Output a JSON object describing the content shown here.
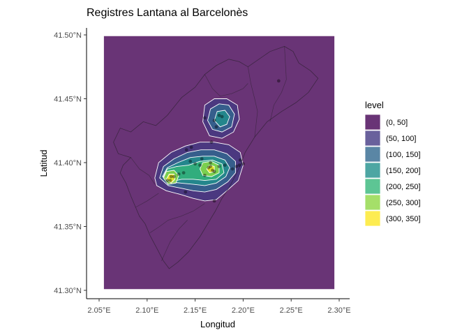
{
  "chart_data": {
    "type": "heatmap",
    "subtype": "filled-density-contour-map",
    "title": "Registres Lantana al Barcelonès",
    "xlabel": "Longitud",
    "ylabel": "Latitud",
    "xlim": [
      2.05,
      2.3
    ],
    "ylim": [
      41.3,
      41.5
    ],
    "x_ticks": [
      2.05,
      2.1,
      2.15,
      2.2,
      2.25,
      2.3
    ],
    "x_tick_labels": [
      "2.05°E",
      "2.10°E",
      "2.15°E",
      "2.20°E",
      "2.25°E",
      "2.30°E"
    ],
    "y_ticks": [
      41.3,
      41.35,
      41.4,
      41.45,
      41.5
    ],
    "y_tick_labels": [
      "41.30°N",
      "41.35°N",
      "41.40°N",
      "41.45°N",
      "41.50°N"
    ],
    "grid": false,
    "legend": {
      "title": "level",
      "placement": "right",
      "entries": [
        {
          "label": "(0, 50]",
          "color": "#440154"
        },
        {
          "label": "(50, 100]",
          "color": "#443A83"
        },
        {
          "label": "(100, 150]",
          "color": "#31688E"
        },
        {
          "label": "(150, 200]",
          "color": "#21908C"
        },
        {
          "label": "(200, 250]",
          "color": "#35B779"
        },
        {
          "label": "(250, 300]",
          "color": "#8FD744"
        },
        {
          "label": "(300, 350]",
          "color": "#FDE725"
        }
      ]
    },
    "fill_opacity": 0.8,
    "contour_line_color": "#ffffff",
    "levels": [
      {
        "level": 1,
        "polygons": [
          [
            [
              2.055,
              41.301
            ],
            [
              2.295,
              41.301
            ],
            [
              2.295,
              41.499
            ],
            [
              2.055,
              41.499
            ]
          ]
        ]
      },
      {
        "level": 2,
        "polygons": [
          [
            [
              2.108,
              41.388
            ],
            [
              2.112,
              41.4
            ],
            [
              2.125,
              41.408
            ],
            [
              2.14,
              41.413
            ],
            [
              2.155,
              41.416
            ],
            [
              2.17,
              41.416
            ],
            [
              2.185,
              41.414
            ],
            [
              2.197,
              41.408
            ],
            [
              2.2,
              41.398
            ],
            [
              2.195,
              41.386
            ],
            [
              2.183,
              41.378
            ],
            [
              2.172,
              41.371
            ],
            [
              2.16,
              41.37
            ],
            [
              2.148,
              41.372
            ],
            [
              2.135,
              41.375
            ],
            [
              2.12,
              41.378
            ],
            [
              2.11,
              41.382
            ]
          ],
          [
            [
              2.158,
              41.432
            ],
            [
              2.16,
              41.445
            ],
            [
              2.17,
              41.45
            ],
            [
              2.183,
              41.45
            ],
            [
              2.194,
              41.445
            ],
            [
              2.196,
              41.434
            ],
            [
              2.19,
              41.424
            ],
            [
              2.178,
              41.419
            ],
            [
              2.165,
              41.421
            ]
          ]
        ]
      },
      {
        "level": 3,
        "polygons": [
          [
            [
              2.113,
              41.388
            ],
            [
              2.117,
              41.397
            ],
            [
              2.128,
              41.403
            ],
            [
              2.142,
              41.408
            ],
            [
              2.156,
              41.41
            ],
            [
              2.17,
              41.41
            ],
            [
              2.183,
              41.407
            ],
            [
              2.192,
              41.401
            ],
            [
              2.192,
              41.392
            ],
            [
              2.184,
              41.385
            ],
            [
              2.172,
              41.379
            ],
            [
              2.16,
              41.377
            ],
            [
              2.148,
              41.378
            ],
            [
              2.135,
              41.38
            ],
            [
              2.122,
              41.382
            ]
          ],
          [
            [
              2.163,
              41.433
            ],
            [
              2.166,
              41.442
            ],
            [
              2.175,
              41.446
            ],
            [
              2.185,
              41.445
            ],
            [
              2.191,
              41.438
            ],
            [
              2.188,
              41.428
            ],
            [
              2.178,
              41.424
            ],
            [
              2.168,
              41.426
            ]
          ]
        ]
      },
      {
        "level": 4,
        "polygons": [
          [
            [
              2.116,
              41.389
            ],
            [
              2.121,
              41.396
            ],
            [
              2.132,
              41.4
            ],
            [
              2.145,
              41.404
            ],
            [
              2.158,
              41.405
            ],
            [
              2.17,
              41.405
            ],
            [
              2.181,
              41.402
            ],
            [
              2.186,
              41.396
            ],
            [
              2.182,
              41.389
            ],
            [
              2.172,
              41.384
            ],
            [
              2.16,
              41.382
            ],
            [
              2.148,
              41.383
            ],
            [
              2.135,
              41.384
            ],
            [
              2.123,
              41.385
            ]
          ],
          [
            [
              2.17,
              41.433
            ],
            [
              2.173,
              41.44
            ],
            [
              2.181,
              41.441
            ],
            [
              2.186,
              41.436
            ],
            [
              2.183,
              41.43
            ],
            [
              2.176,
              41.428
            ]
          ]
        ]
      },
      {
        "level": 5,
        "polygons": [
          [
            [
              2.117,
              41.389
            ],
            [
              2.121,
              41.395
            ],
            [
              2.131,
              41.397
            ],
            [
              2.143,
              41.398
            ],
            [
              2.155,
              41.401
            ],
            [
              2.168,
              41.402
            ],
            [
              2.178,
              41.399
            ],
            [
              2.18,
              41.392
            ],
            [
              2.172,
              41.387
            ],
            [
              2.16,
              41.386
            ],
            [
              2.148,
              41.387
            ],
            [
              2.136,
              41.387
            ],
            [
              2.125,
              41.385
            ]
          ]
        ]
      },
      {
        "level": 6,
        "polygons": [
          [
            [
              2.117,
              41.388
            ],
            [
              2.12,
              41.393
            ],
            [
              2.128,
              41.394
            ],
            [
              2.133,
              41.39
            ],
            [
              2.13,
              41.384
            ],
            [
              2.122,
              41.383
            ]
          ],
          [
            [
              2.155,
              41.395
            ],
            [
              2.158,
              41.4
            ],
            [
              2.167,
              41.401
            ],
            [
              2.175,
              41.398
            ],
            [
              2.175,
              41.392
            ],
            [
              2.167,
              41.389
            ],
            [
              2.158,
              41.39
            ]
          ]
        ]
      },
      {
        "level": 7,
        "polygons": [
          [
            [
              2.12,
              41.387
            ],
            [
              2.123,
              41.391
            ],
            [
              2.128,
              41.391
            ],
            [
              2.129,
              41.387
            ],
            [
              2.125,
              41.384
            ]
          ],
          [
            [
              2.162,
              41.395
            ],
            [
              2.165,
              41.398
            ],
            [
              2.17,
              41.397
            ],
            [
              2.17,
              41.393
            ],
            [
              2.165,
              41.392
            ]
          ]
        ]
      }
    ],
    "points": [
      [
        2.124,
        41.386
      ],
      [
        2.121,
        41.386
      ],
      [
        2.125,
        41.389
      ],
      [
        2.128,
        41.389
      ],
      [
        2.133,
        41.391
      ],
      [
        2.141,
        41.41
      ],
      [
        2.146,
        41.412
      ],
      [
        2.138,
        41.392
      ],
      [
        2.14,
        41.377
      ],
      [
        2.145,
        41.401
      ],
      [
        2.15,
        41.399
      ],
      [
        2.155,
        41.398
      ],
      [
        2.157,
        41.403
      ],
      [
        2.16,
        41.39
      ],
      [
        2.164,
        41.396
      ],
      [
        2.166,
        41.397
      ],
      [
        2.168,
        41.394
      ],
      [
        2.17,
        41.393
      ],
      [
        2.166,
        41.4
      ],
      [
        2.175,
        41.397
      ],
      [
        2.181,
        41.398
      ],
      [
        2.189,
        41.395
      ],
      [
        2.193,
        41.397
      ],
      [
        2.196,
        41.398
      ],
      [
        2.2,
        41.399
      ],
      [
        2.197,
        41.402
      ],
      [
        2.172,
        41.428
      ],
      [
        2.175,
        41.437
      ],
      [
        2.178,
        41.436
      ],
      [
        2.17,
        41.433
      ],
      [
        2.16,
        41.435
      ],
      [
        2.167,
        41.416
      ],
      [
        2.17,
        41.37
      ],
      [
        2.237,
        41.464
      ]
    ],
    "basemap": {
      "outline": [
        [
          2.205,
          41.475
        ],
        [
          2.228,
          41.487
        ],
        [
          2.243,
          41.491
        ],
        [
          2.252,
          41.487
        ],
        [
          2.258,
          41.478
        ],
        [
          2.27,
          41.472
        ],
        [
          2.278,
          41.466
        ],
        [
          2.268,
          41.455
        ],
        [
          2.255,
          41.447
        ],
        [
          2.24,
          41.44
        ],
        [
          2.225,
          41.432
        ],
        [
          2.212,
          41.42
        ],
        [
          2.202,
          41.408
        ],
        [
          2.197,
          41.398
        ],
        [
          2.192,
          41.39
        ],
        [
          2.185,
          41.38
        ],
        [
          2.178,
          41.372
        ],
        [
          2.171,
          41.362
        ],
        [
          2.163,
          41.352
        ],
        [
          2.155,
          41.342
        ],
        [
          2.143,
          41.33
        ],
        [
          2.132,
          41.322
        ],
        [
          2.123,
          41.317
        ],
        [
          2.117,
          41.323
        ],
        [
          2.11,
          41.333
        ],
        [
          2.103,
          41.343
        ],
        [
          2.098,
          41.352
        ],
        [
          2.092,
          41.358
        ],
        [
          2.088,
          41.365
        ],
        [
          2.083,
          41.374
        ],
        [
          2.078,
          41.384
        ],
        [
          2.072,
          41.392
        ],
        [
          2.075,
          41.398
        ],
        [
          2.083,
          41.404
        ],
        [
          2.07,
          41.407
        ],
        [
          2.065,
          41.416
        ],
        [
          2.072,
          41.427
        ],
        [
          2.083,
          41.424
        ],
        [
          2.096,
          41.432
        ],
        [
          2.109,
          41.429
        ],
        [
          2.121,
          41.437
        ],
        [
          2.136,
          41.451
        ],
        [
          2.15,
          41.459
        ],
        [
          2.16,
          41.469
        ],
        [
          2.172,
          41.476
        ],
        [
          2.185,
          41.481
        ],
        [
          2.196,
          41.479
        ]
      ],
      "borders": [
        [
          [
            2.103,
            41.345
          ],
          [
            2.113,
            41.35
          ],
          [
            2.122,
            41.355
          ],
          [
            2.135,
            41.358
          ],
          [
            2.148,
            41.362
          ],
          [
            2.16,
            41.368
          ]
        ],
        [
          [
            2.115,
            41.323
          ],
          [
            2.124,
            41.338
          ],
          [
            2.133,
            41.348
          ],
          [
            2.142,
            41.355
          ]
        ],
        [
          [
            2.088,
            41.365
          ],
          [
            2.1,
            41.37
          ],
          [
            2.112,
            41.376
          ]
        ],
        [
          [
            2.205,
            41.475
          ],
          [
            2.208,
            41.462
          ],
          [
            2.212,
            41.45
          ],
          [
            2.215,
            41.44
          ],
          [
            2.212,
            41.42
          ]
        ],
        [
          [
            2.228,
            41.432
          ],
          [
            2.232,
            41.445
          ],
          [
            2.24,
            41.455
          ],
          [
            2.245,
            41.465
          ],
          [
            2.243,
            41.491
          ]
        ],
        [
          [
            2.16,
            41.469
          ],
          [
            2.168,
            41.458
          ],
          [
            2.176,
            41.452
          ],
          [
            2.188,
            41.454
          ],
          [
            2.2,
            41.458
          ],
          [
            2.205,
            41.462
          ]
        ],
        [
          [
            2.083,
            41.404
          ],
          [
            2.092,
            41.395
          ],
          [
            2.102,
            41.39
          ],
          [
            2.108,
            41.383
          ]
        ]
      ]
    }
  }
}
